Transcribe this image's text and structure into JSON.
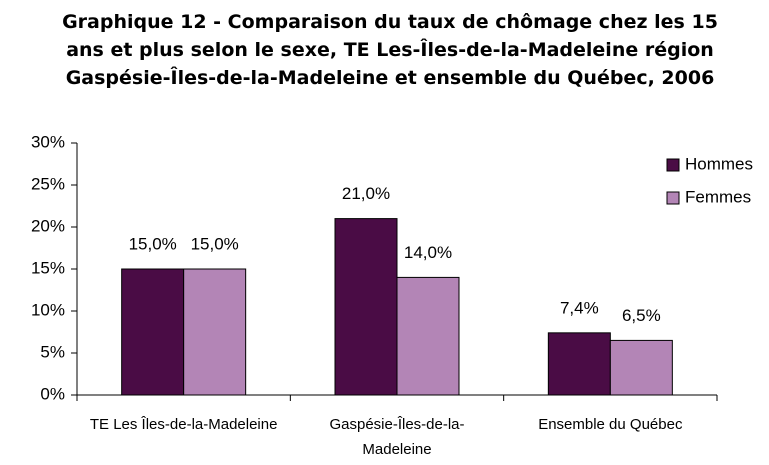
{
  "chart_data": {
    "type": "bar",
    "title": "Graphique 12 - Comparaison du taux de chômage chez les 15 ans et plus selon le sexe, TE Les-Îles-de-la-Madeleine région Gaspésie-Îles-de-la-Madeleine et ensemble du Québec, 2006",
    "categories": [
      "TE Les Îles-de-la-Madeleine",
      "Gaspésie-Îles-de-la-Madeleine",
      "Ensemble du Québec"
    ],
    "series": [
      {
        "name": "Hommes",
        "color": "#4a0c45",
        "values": [
          15.0,
          21.0,
          7.4
        ],
        "value_labels": [
          "15,0%",
          "21,0%",
          "7,4%"
        ]
      },
      {
        "name": "Femmes",
        "color": "#b385b6",
        "values": [
          15.0,
          14.0,
          6.5
        ],
        "value_labels": [
          "15,0%",
          "14,0%",
          "6,5%"
        ]
      }
    ],
    "ylim": [
      0,
      30
    ],
    "yticks": [
      {
        "value": 0,
        "label": "0%"
      },
      {
        "value": 5,
        "label": "5%"
      },
      {
        "value": 10,
        "label": "10%"
      },
      {
        "value": 15,
        "label": "15%"
      },
      {
        "value": 20,
        "label": "20%"
      },
      {
        "value": 25,
        "label": "25%"
      },
      {
        "value": 30,
        "label": "30%"
      }
    ],
    "legend": "right"
  }
}
